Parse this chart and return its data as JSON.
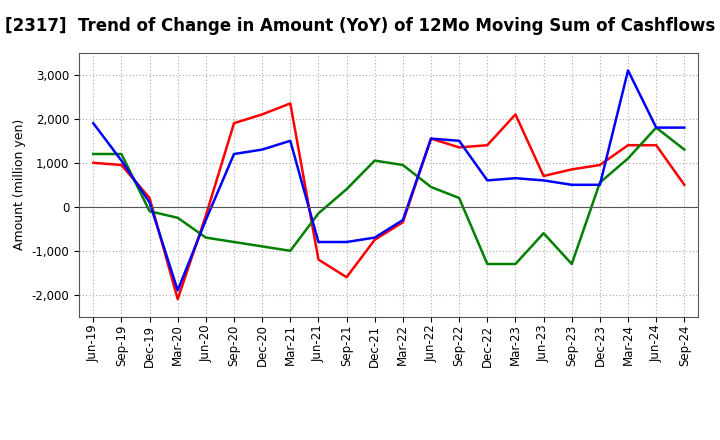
{
  "title": "[2317]  Trend of Change in Amount (YoY) of 12Mo Moving Sum of Cashflows",
  "ylabel": "Amount (million yen)",
  "x_labels": [
    "Jun-19",
    "Sep-19",
    "Dec-19",
    "Mar-20",
    "Jun-20",
    "Sep-20",
    "Dec-20",
    "Mar-21",
    "Jun-21",
    "Sep-21",
    "Dec-21",
    "Mar-22",
    "Jun-22",
    "Sep-22",
    "Dec-22",
    "Mar-23",
    "Jun-23",
    "Sep-23",
    "Dec-23",
    "Mar-24",
    "Jun-24",
    "Sep-24"
  ],
  "operating": [
    1000,
    950,
    200,
    -2100,
    -200,
    1900,
    2100,
    2350,
    -1200,
    -1600,
    -750,
    -350,
    1550,
    1350,
    1400,
    2100,
    700,
    850,
    950,
    1400,
    1400,
    500
  ],
  "investing": [
    1200,
    1200,
    -100,
    -250,
    -700,
    -800,
    -900,
    -1000,
    -150,
    400,
    1050,
    950,
    450,
    200,
    -1300,
    -1300,
    -600,
    -1300,
    550,
    1100,
    1800,
    1300
  ],
  "free": [
    1900,
    1050,
    100,
    -1900,
    -300,
    1200,
    1300,
    1500,
    -800,
    -800,
    -700,
    -300,
    1550,
    1500,
    600,
    650,
    600,
    500,
    500,
    3100,
    1800,
    1800
  ],
  "ylim": [
    -2500,
    3500
  ],
  "yticks": [
    -2000,
    -1000,
    0,
    1000,
    2000,
    3000
  ],
  "operating_color": "#ff0000",
  "investing_color": "#008000",
  "free_color": "#0000ff",
  "bg_color": "#ffffff",
  "grid_color": "#aaaaaa",
  "title_fontsize": 12,
  "label_fontsize": 9,
  "tick_fontsize": 8.5
}
